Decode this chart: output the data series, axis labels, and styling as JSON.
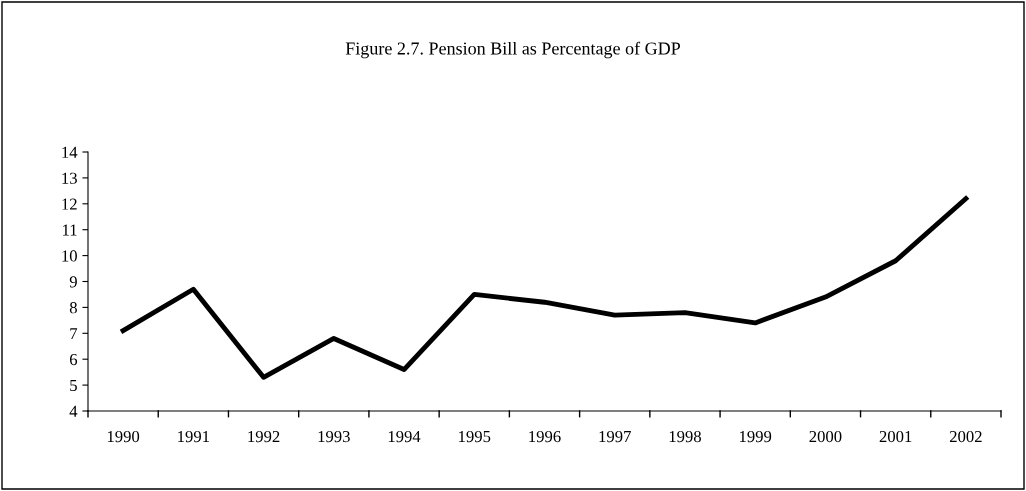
{
  "chart_data": {
    "type": "line",
    "title": "Figure 2.7. Pension Bill as Percentage of GDP",
    "categories": [
      "1990",
      "1991",
      "1992",
      "1993",
      "1994",
      "1995",
      "1996",
      "1997",
      "1998",
      "1999",
      "2000",
      "2001",
      "2002"
    ],
    "series": [
      {
        "color": "#000000",
        "values": [
          7.1,
          8.7,
          5.3,
          6.8,
          5.6,
          8.5,
          8.2,
          7.7,
          7.8,
          7.4,
          8.4,
          9.8,
          12.2
        ]
      }
    ],
    "ylim": [
      4,
      14
    ],
    "yticks": [
      4,
      5,
      6,
      7,
      8,
      9,
      10,
      11,
      12,
      13,
      14
    ],
    "grid": false,
    "legend": false,
    "marker": "none",
    "line_style": "solid"
  }
}
